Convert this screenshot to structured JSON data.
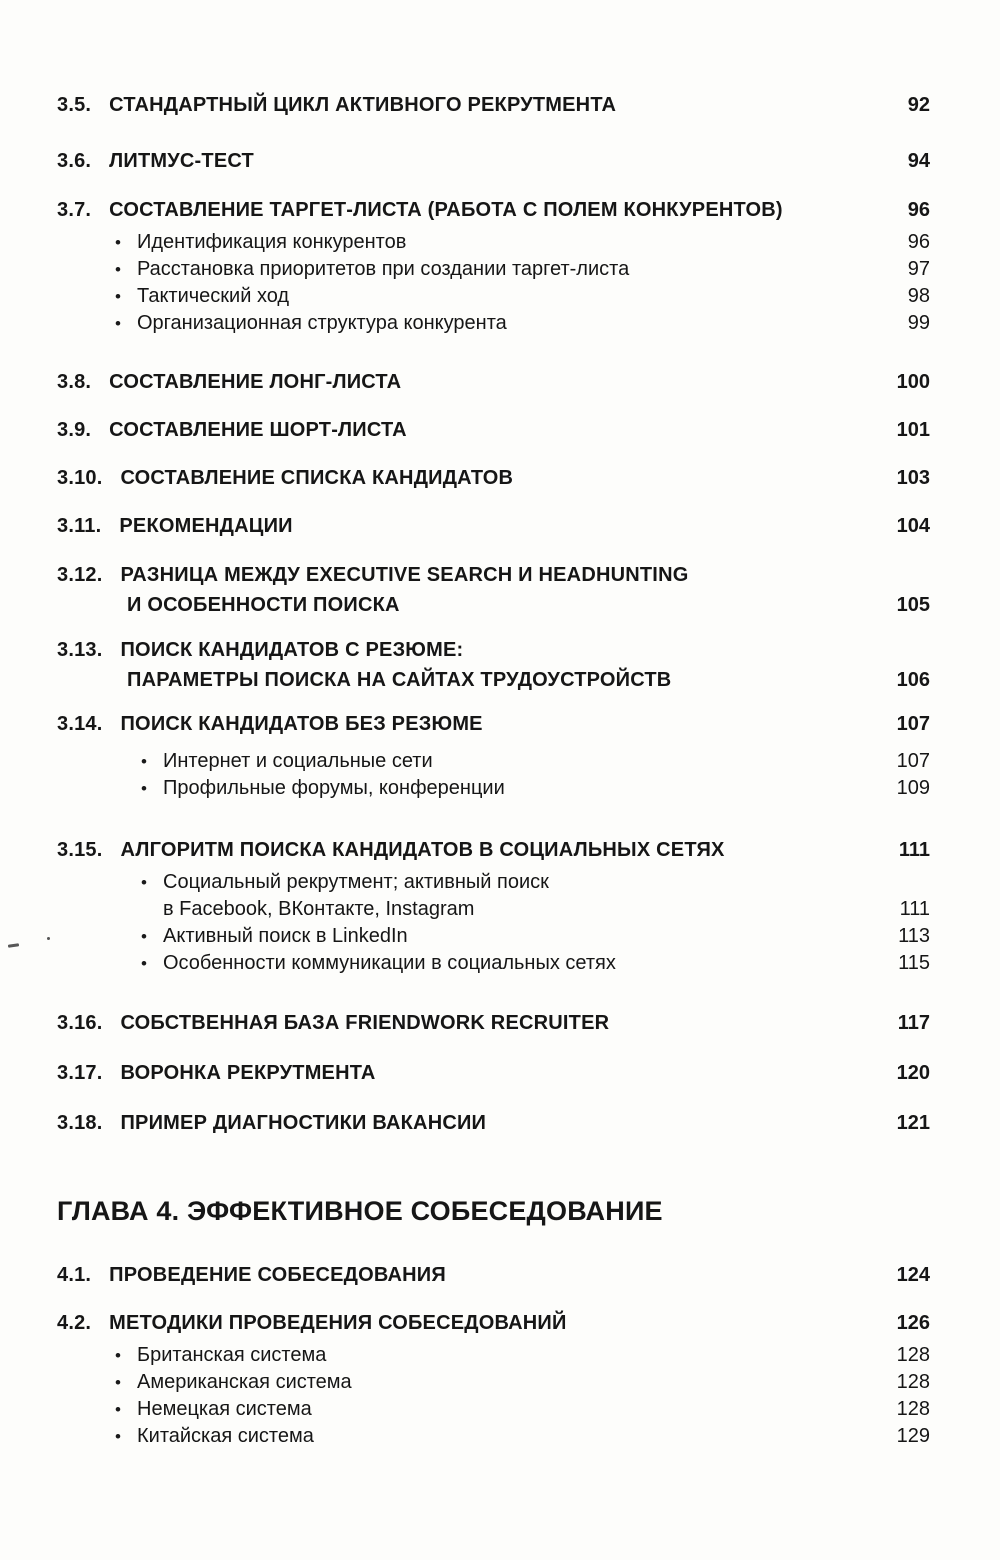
{
  "page": {
    "background": "#fdfdfb",
    "text_color": "#161616"
  },
  "icons": {
    "bullet": "•"
  },
  "toc": {
    "entries": [
      {
        "kind": "section",
        "num": "3.5.",
        "lines": [
          "СТАНДАРТНЫЙ ЦИКЛ АКТИВНОГО РЕКРУТМЕНТА"
        ],
        "page": "92",
        "gap": 0
      },
      {
        "kind": "section",
        "num": "3.6.",
        "lines": [
          "ЛИТМУС-ТЕСТ"
        ],
        "page": "94",
        "gap": 26
      },
      {
        "kind": "section",
        "num": "3.7.",
        "lines": [
          "СОСТАВЛЕНИЕ ТАРГЕТ-ЛИСТА (РАБОТА С ПОЛЕМ КОНКУРЕНТОВ)"
        ],
        "page": "96",
        "gap": 19
      },
      {
        "kind": "bullet",
        "indent": 1,
        "lines": [
          "Идентификация конкурентов"
        ],
        "page": "96",
        "gap": 4
      },
      {
        "kind": "bullet",
        "indent": 1,
        "lines": [
          "Расстановка приоритетов при создании таргет-листа"
        ],
        "page": "97",
        "gap": 0
      },
      {
        "kind": "bullet",
        "indent": 1,
        "lines": [
          "Тактический ход"
        ],
        "page": "98",
        "gap": 0
      },
      {
        "kind": "bullet",
        "indent": 1,
        "lines": [
          "Организационная структура конкурента"
        ],
        "page": "99",
        "gap": 0
      },
      {
        "kind": "section",
        "num": "3.8.",
        "lines": [
          "СОСТАВЛЕНИЕ ЛОНГ-ЛИСТА"
        ],
        "page": "100",
        "gap": 30
      },
      {
        "kind": "section",
        "num": "3.9.",
        "lines": [
          "СОСТАВЛЕНИЕ ШОРТ-ЛИСТА"
        ],
        "page": "101",
        "gap": 18
      },
      {
        "kind": "section",
        "num": "3.10.",
        "lines": [
          "СОСТАВЛЕНИЕ СПИСКА КАНДИДАТОВ"
        ],
        "page": "103",
        "gap": 18
      },
      {
        "kind": "section",
        "num": "3.11.",
        "lines": [
          "РЕКОМЕНДАЦИИ"
        ],
        "page": "104",
        "gap": 18
      },
      {
        "kind": "section",
        "num": "3.12.",
        "lines": [
          "РАЗНИЦА МЕЖДУ EXECUTIVE SEARCH И HEADHUNTING",
          "И ОСОБЕННОСТИ ПОИСКА"
        ],
        "page": "105",
        "gap": 19
      },
      {
        "kind": "section",
        "num": "3.13.",
        "lines": [
          "ПОИСК КАНДИДАТОВ С РЕЗЮМЕ:",
          "ПАРАМЕТРЫ ПОИСКА НА САЙТАХ ТРУДОУСТРОЙСТВ"
        ],
        "page": "106",
        "gap": 15
      },
      {
        "kind": "section",
        "num": "3.14.",
        "lines": [
          "ПОИСК КАНДИДАТОВ БЕЗ РЕЗЮМЕ"
        ],
        "page": "107",
        "gap": 14
      },
      {
        "kind": "bullet",
        "indent": 2,
        "lines": [
          "Интернет и социальные сети"
        ],
        "page": "107",
        "gap": 9
      },
      {
        "kind": "bullet",
        "indent": 2,
        "lines": [
          "Профильные форумы, конференции"
        ],
        "page": "109",
        "gap": 0
      },
      {
        "kind": "section",
        "num": "3.15.",
        "lines": [
          "АЛГОРИТМ ПОИСКА КАНДИДАТОВ В СОЦИАЛЬНЫХ СЕТЯХ"
        ],
        "page": "111",
        "gap": 33
      },
      {
        "kind": "bullet",
        "indent": 2,
        "lines": [
          "Социальный рекрутмент; активный поиск",
          "в Facebook, ВКонтакте, Instagram"
        ],
        "page": "111",
        "gap": 4
      },
      {
        "kind": "bullet",
        "indent": 2,
        "lines": [
          "Активный поиск в LinkedIn"
        ],
        "page": "113",
        "gap": 0
      },
      {
        "kind": "bullet",
        "indent": 2,
        "lines": [
          "Особенности коммуникации в социальных сетях"
        ],
        "page": "115",
        "gap": 0
      },
      {
        "kind": "section",
        "num": "3.16.",
        "lines": [
          "СОБСТВЕННАЯ БАЗА FRIENDWORK RECRUITER"
        ],
        "page": "117",
        "gap": 31
      },
      {
        "kind": "section",
        "num": "3.17.",
        "lines": [
          "ВОРОНКА РЕКРУТМЕНТА"
        ],
        "page": "120",
        "gap": 20
      },
      {
        "kind": "section",
        "num": "3.18.",
        "lines": [
          "ПРИМЕР ДИАГНОСТИКИ ВАКАНСИИ"
        ],
        "page": "121",
        "gap": 20
      },
      {
        "kind": "chapter",
        "lines": [
          "ГЛАВА 4. ЭФФЕКТИВНОЕ СОБЕСЕДОВАНИЕ"
        ],
        "gap": 55
      },
      {
        "kind": "section",
        "num": "4.1.",
        "lines": [
          "ПРОВЕДЕНИЕ СОБЕСЕДОВАНИЯ"
        ],
        "page": "124",
        "gap": 31
      },
      {
        "kind": "section",
        "num": "4.2.",
        "lines": [
          "МЕТОДИКИ ПРОВЕДЕНИЯ СОБЕСЕДОВАНИЙ"
        ],
        "page": "126",
        "gap": 18
      },
      {
        "kind": "bullet",
        "indent": 1,
        "lines": [
          "Британская система"
        ],
        "page": "128",
        "gap": 4
      },
      {
        "kind": "bullet",
        "indent": 1,
        "lines": [
          "Американская система"
        ],
        "page": "128",
        "gap": 0
      },
      {
        "kind": "bullet",
        "indent": 1,
        "lines": [
          "Немецкая система"
        ],
        "page": "128",
        "gap": 0
      },
      {
        "kind": "bullet",
        "indent": 1,
        "lines": [
          "Китайская система"
        ],
        "page": "129",
        "gap": 0
      }
    ]
  }
}
